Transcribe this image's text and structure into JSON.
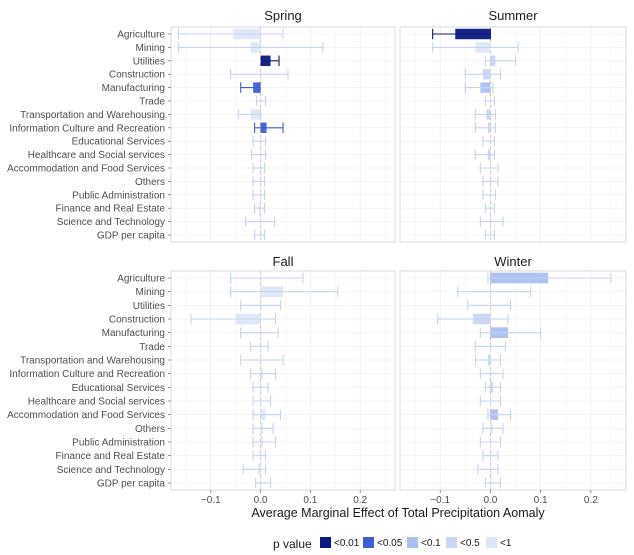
{
  "chart_data": {
    "type": "bar",
    "orientation": "horizontal",
    "facet_layout": "2x2",
    "xlabel": "Average Marginal Effect of Total Precipitation Aomaly",
    "xlim": [
      -0.18,
      0.27
    ],
    "xticks": [
      -0.1,
      0.0,
      0.1,
      0.2
    ],
    "xtick_labels": [
      "−0.1",
      "0.0",
      "0.1",
      "0.2"
    ],
    "categories": [
      "Agriculture",
      "Mining",
      "Utilities",
      "Construction",
      "Manufacturing",
      "Trade",
      "Transportation and Warehousing",
      "Information Culture and Recreation",
      "Educational Services",
      "Healthcare and Social services",
      "Accommodation and Food Services",
      "Others",
      "Public Administration",
      "Finance and Real Estate",
      "Science and Technology",
      "GDP per capita"
    ],
    "legend": {
      "title": "p value",
      "position": "bottom",
      "entries": [
        {
          "label": "<0.01",
          "color": "#0b1a80"
        },
        {
          "label": "<0.05",
          "color": "#3d5fd6"
        },
        {
          "label": "<0.1",
          "color": "#a9c0f2"
        },
        {
          "label": "<0.5",
          "color": "#c8d7f6"
        },
        {
          "label": "<1",
          "color": "#dde7f8"
        }
      ]
    },
    "panels": [
      {
        "title": "Spring",
        "values": [
          -0.055,
          -0.02,
          0.02,
          0.0,
          -0.015,
          0.0,
          -0.02,
          0.012,
          0.0,
          0.0,
          0.0,
          0.0,
          0.0,
          -0.003,
          0.0,
          0.0
        ],
        "ci_low": [
          -0.165,
          -0.165,
          0.003,
          -0.06,
          -0.04,
          -0.008,
          -0.045,
          -0.012,
          -0.015,
          -0.018,
          -0.015,
          -0.015,
          -0.015,
          -0.012,
          -0.03,
          -0.012
        ],
        "ci_high": [
          0.045,
          0.125,
          0.037,
          0.055,
          -0.003,
          0.01,
          0.0,
          0.045,
          0.01,
          0.01,
          0.008,
          0.008,
          0.008,
          0.008,
          0.028,
          0.008
        ],
        "p_class": [
          4,
          4,
          0,
          4,
          1,
          4,
          4,
          1,
          4,
          4,
          4,
          4,
          4,
          4,
          4,
          4
        ]
      },
      {
        "title": "Summer",
        "values": [
          -0.07,
          -0.03,
          0.01,
          -0.015,
          -0.02,
          0.0,
          -0.008,
          -0.005,
          0.0,
          -0.005,
          0.0,
          0.0,
          0.0,
          0.0,
          0.0,
          0.0
        ],
        "ci_low": [
          -0.115,
          -0.115,
          -0.01,
          -0.05,
          -0.05,
          -0.01,
          -0.03,
          -0.03,
          -0.015,
          -0.03,
          -0.02,
          -0.015,
          -0.015,
          -0.01,
          -0.02,
          -0.01
        ],
        "ci_high": [
          0.0,
          0.055,
          0.05,
          0.02,
          0.005,
          0.008,
          0.01,
          0.01,
          0.008,
          0.008,
          0.015,
          0.015,
          0.01,
          0.008,
          0.025,
          0.008
        ],
        "p_class": [
          0,
          4,
          3,
          3,
          2,
          4,
          3,
          3,
          4,
          3,
          4,
          4,
          4,
          4,
          4,
          4
        ]
      },
      {
        "title": "Fall",
        "values": [
          0.0,
          0.045,
          0.0,
          -0.05,
          0.0,
          0.0,
          0.0,
          0.005,
          0.0,
          0.0,
          0.01,
          0.005,
          0.005,
          0.0,
          -0.005,
          0.0
        ],
        "ci_low": [
          -0.06,
          -0.06,
          -0.04,
          -0.14,
          -0.04,
          -0.02,
          -0.04,
          -0.02,
          -0.015,
          -0.015,
          -0.015,
          -0.015,
          -0.015,
          -0.015,
          -0.035,
          -0.01
        ],
        "ci_high": [
          0.085,
          0.155,
          0.04,
          0.03,
          0.035,
          0.015,
          0.045,
          0.03,
          0.015,
          0.02,
          0.04,
          0.025,
          0.03,
          0.01,
          0.01,
          0.02
        ],
        "p_class": [
          4,
          4,
          4,
          4,
          4,
          4,
          4,
          4,
          4,
          4,
          4,
          4,
          4,
          4,
          4,
          4
        ]
      },
      {
        "title": "Winter",
        "values": [
          0.115,
          0.0,
          0.0,
          -0.035,
          0.035,
          0.0,
          -0.005,
          0.0,
          0.005,
          0.0,
          0.015,
          0.005,
          0.0,
          0.0,
          0.0,
          0.0
        ],
        "ci_low": [
          -0.005,
          -0.065,
          -0.045,
          -0.105,
          -0.02,
          -0.03,
          -0.03,
          -0.02,
          -0.01,
          -0.02,
          -0.005,
          -0.015,
          -0.02,
          -0.015,
          -0.025,
          -0.01
        ],
        "ci_high": [
          0.24,
          0.08,
          0.04,
          0.035,
          0.1,
          0.03,
          0.02,
          0.025,
          0.02,
          0.02,
          0.04,
          0.025,
          0.02,
          0.015,
          0.015,
          0.02
        ],
        "p_class": [
          2,
          4,
          4,
          3,
          2,
          4,
          3,
          4,
          3,
          4,
          2,
          4,
          4,
          4,
          4,
          4
        ]
      }
    ]
  }
}
